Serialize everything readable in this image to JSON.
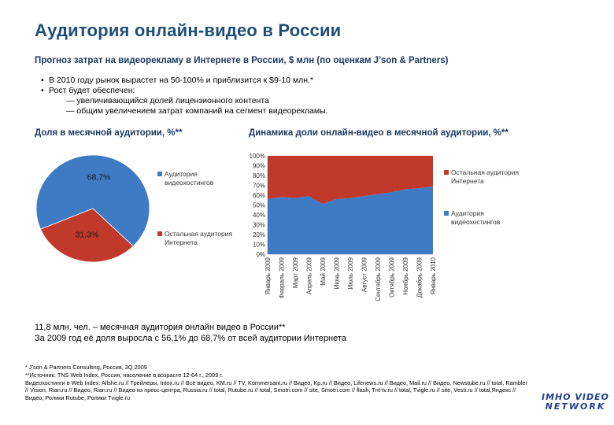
{
  "title": "Аудитория онлайн-видео в России",
  "subtitle": "Прогноз затрат на видеорекламу в Интернете в России, $ млн (по оценкам J’son & Partners)",
  "bullets": {
    "b1": "В 2010 году рынок вырастет на 50-100% и приблизится к $9-10 млн.*",
    "b2": "Рост будет обеспечен:",
    "s1": "— увеличивающийся долей лицензионного контента",
    "s2": "— общим увеличением затрат компаний на сегмент видеорекламы."
  },
  "bullet_glyph": "•",
  "pie_title": "Доля в месячной аудитории, %**",
  "area_title": "Динамика доли онлайн-видео в месячной аудитории, %**",
  "summary": {
    "line1": "11,8 млн. чел. – месячная аудитория онлайн видео в России**",
    "line2": "За 2009 год её доля выросла с 56,1% до 68,7% от всей аудитории Интернета"
  },
  "footnotes": {
    "f1": "* J’son & Partners Consulting, Россия, 3Q 2009",
    "f2": "**Источник: TNS Web Index, Россия, население в возрасте 12-64 г., 2009 г.",
    "f3": "Видеохостинги в Web Index: Allshe.ru // Трейлеры, Intox.ru // Всё видео, KM.ru // TV, Kommersant.ru // Видео, Kp.ru // Видео, Lifenews.ru // Видео, Mail.ru // Видео, Newstube.ru // total, Rambler",
    "f4": "// Vision, Rian.ru // Видео, Rian.ru // Видео из пресс-центра, Russia.ru // total, Rutube.ru // total, Smotri.com // site, Smotri.com // flash, Tnt-tv.ru // total, Tvigle.ru // site, Vesti.ru // total,Яндекс //",
    "f5": "Видео, Ролики Rutube, Ролики Tvigle.ru"
  },
  "logo": {
    "line1": "IMHO VIDEO",
    "line2": "NETWORK"
  },
  "colors": {
    "blue": "#3f7bc4",
    "red": "#c0392b",
    "title": "#1f4e79"
  },
  "chart_data": [
    {
      "type": "pie",
      "title": "Доля в месячной аудитории, %**",
      "slices": [
        {
          "label": "Аудитория видеохостингов",
          "value": 68.7,
          "display": "68,7%",
          "color": "#3f7bc4"
        },
        {
          "label": "Остальная аудитория Интернета",
          "value": 31.3,
          "display": "31,3%",
          "color": "#c0392b"
        }
      ],
      "legend": [
        {
          "line1": "Аудитория",
          "line2": "видеохостингов",
          "color": "#3f7bc4"
        },
        {
          "line1": "Остальная аудитория",
          "line2": "Интернета",
          "color": "#c0392b"
        }
      ],
      "legend_position": "right"
    },
    {
      "type": "area",
      "title": "Динамика доли онлайн-видео в месячной аудитории, %**",
      "categories": [
        "Январь 2009",
        "Февраль 2009",
        "Март 2009",
        "Апрель 2009",
        "Май 2009",
        "Июнь 2009",
        "Июль 2009",
        "Август 2009",
        "Сентябрь 2009",
        "Октябрь 2009",
        "Ноябрь 2009",
        "Декабрь 2009",
        "Январь 2010"
      ],
      "yticks": [
        "0%",
        "10%",
        "20%",
        "30%",
        "40%",
        "50%",
        "60%",
        "70%",
        "80%",
        "90%",
        "100%"
      ],
      "ylim": [
        0,
        100
      ],
      "series": [
        {
          "name": "Аудитория видеохостингов",
          "color": "#3f7bc4",
          "values": [
            56.1,
            58,
            57,
            59,
            51,
            56,
            57,
            59,
            61,
            63,
            66,
            67,
            68.7
          ]
        },
        {
          "name": "Остальная аудитория Интернета",
          "color": "#c0392b",
          "values": [
            43.9,
            42,
            43,
            41,
            49,
            44,
            43,
            41,
            39,
            37,
            34,
            33,
            31.3
          ]
        }
      ],
      "legend": [
        {
          "line1": "Остальная аудитория",
          "line2": "Интернета",
          "color": "#c0392b"
        },
        {
          "line1": "Аудитория",
          "line2": "видеохостингов",
          "color": "#3f7bc4"
        }
      ],
      "legend_position": "right"
    }
  ]
}
